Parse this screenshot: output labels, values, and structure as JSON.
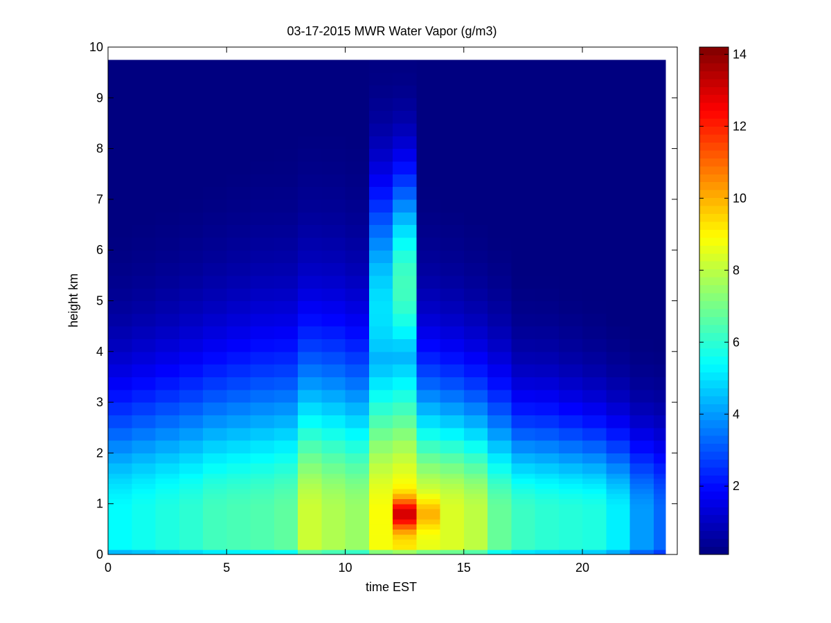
{
  "chart_data": {
    "type": "heatmap",
    "title": "03-17-2015 MWR Water Vapor (g/m3)",
    "xlabel": "time EST",
    "ylabel": "height km",
    "xlim": [
      0,
      24
    ],
    "ylim": [
      0,
      10
    ],
    "x_ticks": [
      0,
      5,
      10,
      15,
      20
    ],
    "y_ticks": [
      0,
      1,
      2,
      3,
      4,
      5,
      6,
      7,
      8,
      9,
      10
    ],
    "colormap": "jet",
    "colorbar": {
      "min": 0.1,
      "max": 14.2,
      "ticks": [
        2,
        4,
        6,
        8,
        10,
        12,
        14
      ]
    },
    "x_centers": [
      0.5,
      1.5,
      2.5,
      3.5,
      4.5,
      5.5,
      6.5,
      7.5,
      8.5,
      9.5,
      10.5,
      11.5,
      12.5,
      13.5,
      14.5,
      15.5,
      16.5,
      17.5,
      18.5,
      19.5,
      20.5,
      21.5,
      22.5,
      23.5
    ],
    "x_edges": [
      0,
      1,
      2,
      3,
      4,
      5,
      6,
      7,
      8,
      9,
      10,
      11,
      12,
      13,
      14,
      15,
      16,
      17,
      18,
      19,
      20,
      21,
      22,
      23,
      23.5
    ],
    "heights_km": [
      0,
      0.1,
      0.2,
      0.3,
      0.4,
      0.5,
      0.6,
      0.7,
      0.8,
      0.9,
      1.0,
      1.1,
      1.2,
      1.3,
      1.4,
      1.5,
      1.6,
      1.8,
      2.0,
      2.25,
      2.5,
      2.75,
      3.0,
      3.25,
      3.5,
      3.75,
      4.0,
      4.25,
      4.5,
      4.75,
      5.0,
      5.25,
      5.5,
      5.75,
      6.0,
      6.25,
      6.5,
      6.75,
      7.0,
      7.25,
      7.5,
      7.75,
      8.0,
      8.25,
      8.5,
      8.75,
      9.0,
      9.25,
      9.5,
      9.75
    ],
    "surface_values": [
      5.4,
      5.6,
      5.8,
      6.0,
      6.3,
      6.4,
      6.5,
      6.7,
      8.2,
      7.8,
      7.5,
      8.8,
      9.2,
      8.6,
      8.4,
      8.0,
      6.8,
      6.2,
      6.0,
      5.9,
      5.8,
      5.2,
      4.0,
      3.3
    ],
    "decay_height_km": [
      2.3,
      2.4,
      2.5,
      2.6,
      2.7,
      2.8,
      2.9,
      2.9,
      3.0,
      3.0,
      2.9,
      3.6,
      3.6,
      2.5,
      2.4,
      2.3,
      2.2,
      1.9,
      1.9,
      1.8,
      1.7,
      1.6,
      1.5,
      1.5
    ],
    "peak": {
      "x": 12.8,
      "height_km": 0.8,
      "value": 14.2
    },
    "column_enhancement": [
      {
        "x": 11.5,
        "value": 5.0,
        "height_km": 4.8,
        "spread_km": 2.5
      },
      {
        "x": 12.5,
        "value": 6.3,
        "height_km": 5.3,
        "spread_km": 2.2
      }
    ]
  }
}
